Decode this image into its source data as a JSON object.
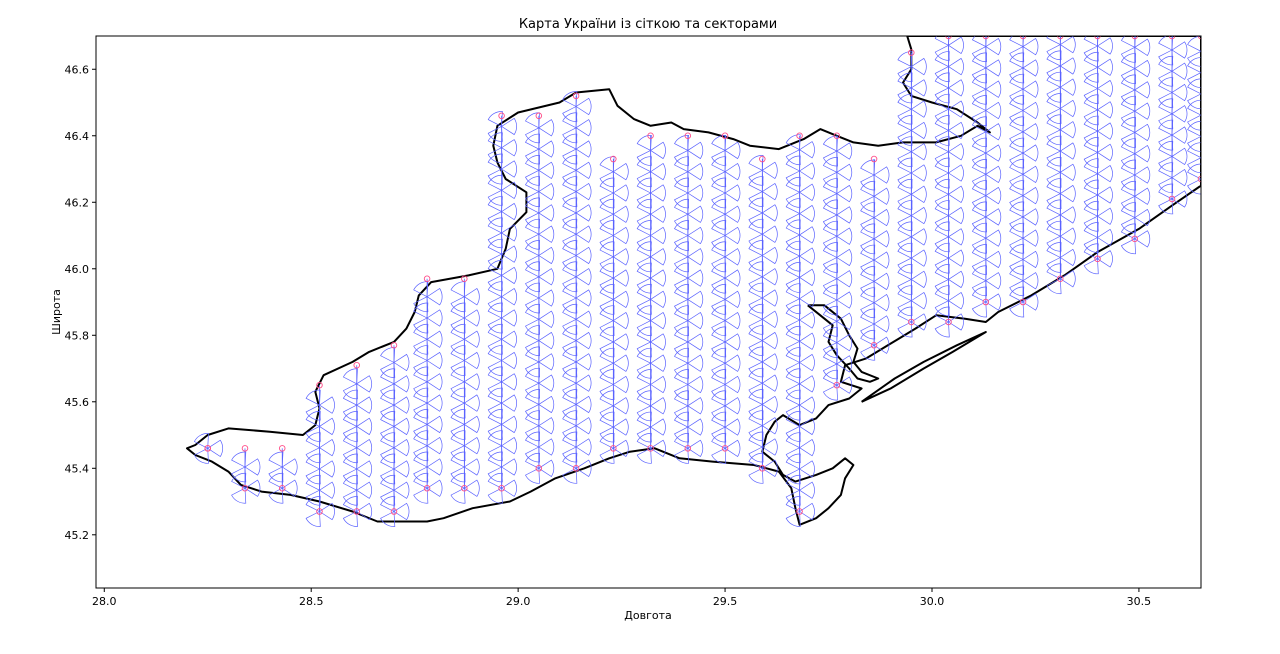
{
  "chart_data": {
    "type": "scatter",
    "title": "Карта України із сіткою та секторами",
    "xlabel": "Довгота",
    "ylabel": "Широта",
    "xlim": [
      27.98,
      30.65
    ],
    "ylim": [
      45.04,
      46.7
    ],
    "xticks": [
      28.0,
      28.5,
      29.0,
      29.5,
      30.0,
      30.5
    ],
    "xtick_labels": [
      "28.0",
      "28.5",
      "29.0",
      "29.5",
      "30.0",
      "30.5"
    ],
    "yticks": [
      45.2,
      45.4,
      45.6,
      45.8,
      46.0,
      46.2,
      46.4,
      46.6
    ],
    "ytick_labels": [
      "45.2",
      "45.4",
      "45.6",
      "45.8",
      "46.0",
      "46.2",
      "46.4",
      "46.6"
    ],
    "grid": false,
    "grid_spacing": {
      "dx": 0.09,
      "dy": 0.064
    },
    "grid_columns": [
      {
        "lon": 28.25,
        "lat_min": 45.46,
        "lat_max": 45.46
      },
      {
        "lon": 28.34,
        "lat_min": 45.34,
        "lat_max": 45.46
      },
      {
        "lon": 28.43,
        "lat_min": 45.34,
        "lat_max": 45.46
      },
      {
        "lon": 28.52,
        "lat_min": 45.27,
        "lat_max": 45.65
      },
      {
        "lon": 28.61,
        "lat_min": 45.27,
        "lat_max": 45.71
      },
      {
        "lon": 28.7,
        "lat_min": 45.27,
        "lat_max": 45.77
      },
      {
        "lon": 28.78,
        "lat_min": 45.34,
        "lat_max": 45.97
      },
      {
        "lon": 28.87,
        "lat_min": 45.34,
        "lat_max": 45.97
      },
      {
        "lon": 28.96,
        "lat_min": 45.34,
        "lat_max": 46.46
      },
      {
        "lon": 29.05,
        "lat_min": 45.4,
        "lat_max": 46.46
      },
      {
        "lon": 29.14,
        "lat_min": 45.4,
        "lat_max": 46.52
      },
      {
        "lon": 29.23,
        "lat_min": 45.46,
        "lat_max": 46.33
      },
      {
        "lon": 29.32,
        "lat_min": 45.46,
        "lat_max": 46.4
      },
      {
        "lon": 29.41,
        "lat_min": 45.46,
        "lat_max": 46.4
      },
      {
        "lon": 29.5,
        "lat_min": 45.46,
        "lat_max": 46.4
      },
      {
        "lon": 29.59,
        "lat_min": 45.4,
        "lat_max": 46.33
      },
      {
        "lon": 29.68,
        "lat_min": 45.27,
        "lat_max": 46.4
      },
      {
        "lon": 29.77,
        "lat_min": 45.65,
        "lat_max": 46.4
      },
      {
        "lon": 29.86,
        "lat_min": 45.77,
        "lat_max": 46.33
      },
      {
        "lon": 29.95,
        "lat_min": 45.84,
        "lat_max": 46.65
      },
      {
        "lon": 30.04,
        "lat_min": 45.84,
        "lat_max": 46.7
      },
      {
        "lon": 30.13,
        "lat_min": 45.9,
        "lat_max": 46.7
      },
      {
        "lon": 30.22,
        "lat_min": 45.9,
        "lat_max": 46.7
      },
      {
        "lon": 30.31,
        "lat_min": 45.97,
        "lat_max": 46.7
      },
      {
        "lon": 30.4,
        "lat_min": 46.03,
        "lat_max": 46.7
      },
      {
        "lon": 30.49,
        "lat_min": 46.09,
        "lat_max": 46.7
      },
      {
        "lon": 30.58,
        "lat_min": 46.21,
        "lat_max": 46.7
      },
      {
        "lon": 30.65,
        "lat_min": 46.27,
        "lat_max": 46.7
      }
    ],
    "boundary": [
      [
        28.22,
        45.47
      ],
      [
        28.25,
        45.5
      ],
      [
        28.3,
        45.52
      ],
      [
        28.4,
        45.51
      ],
      [
        28.48,
        45.5
      ],
      [
        28.51,
        45.53
      ],
      [
        28.52,
        45.58
      ],
      [
        28.51,
        45.63
      ],
      [
        28.53,
        45.68
      ],
      [
        28.6,
        45.72
      ],
      [
        28.64,
        45.75
      ],
      [
        28.7,
        45.78
      ],
      [
        28.73,
        45.82
      ],
      [
        28.75,
        45.87
      ],
      [
        28.76,
        45.92
      ],
      [
        28.79,
        45.96
      ],
      [
        28.88,
        45.98
      ],
      [
        28.95,
        46.0
      ],
      [
        28.97,
        46.06
      ],
      [
        28.98,
        46.12
      ],
      [
        29.02,
        46.17
      ],
      [
        29.02,
        46.23
      ],
      [
        28.97,
        46.27
      ],
      [
        28.95,
        46.32
      ],
      [
        28.94,
        46.37
      ],
      [
        28.95,
        46.43
      ],
      [
        29.0,
        46.47
      ],
      [
        29.1,
        46.5
      ],
      [
        29.14,
        46.53
      ],
      [
        29.22,
        46.54
      ],
      [
        29.24,
        46.49
      ],
      [
        29.28,
        46.45
      ],
      [
        29.32,
        46.43
      ],
      [
        29.37,
        46.44
      ],
      [
        29.4,
        46.42
      ],
      [
        29.46,
        46.41
      ],
      [
        29.52,
        46.39
      ],
      [
        29.56,
        46.37
      ],
      [
        29.63,
        46.36
      ],
      [
        29.69,
        46.39
      ],
      [
        29.73,
        46.42
      ],
      [
        29.77,
        46.4
      ],
      [
        29.81,
        46.38
      ],
      [
        29.87,
        46.37
      ],
      [
        29.93,
        46.38
      ],
      [
        30.01,
        46.38
      ],
      [
        30.07,
        46.4
      ],
      [
        30.11,
        46.43
      ],
      [
        30.14,
        46.41
      ],
      [
        30.11,
        46.44
      ],
      [
        30.06,
        46.48
      ],
      [
        30.0,
        46.5
      ],
      [
        29.95,
        46.52
      ],
      [
        29.93,
        46.56
      ],
      [
        29.95,
        46.6
      ],
      [
        29.95,
        46.66
      ],
      [
        29.94,
        46.7
      ],
      [
        30.65,
        46.7
      ],
      [
        30.65,
        46.25
      ],
      [
        30.58,
        46.19
      ],
      [
        30.5,
        46.12
      ],
      [
        30.4,
        46.05
      ],
      [
        30.32,
        45.98
      ],
      [
        30.24,
        45.92
      ],
      [
        30.16,
        45.87
      ],
      [
        30.13,
        45.84
      ],
      [
        30.08,
        45.85
      ],
      [
        30.01,
        45.86
      ],
      [
        29.96,
        45.82
      ],
      [
        29.92,
        45.79
      ],
      [
        29.88,
        45.76
      ],
      [
        29.84,
        45.73
      ],
      [
        29.79,
        45.71
      ],
      [
        29.78,
        45.66
      ],
      [
        29.83,
        45.64
      ],
      [
        29.8,
        45.61
      ],
      [
        29.75,
        45.59
      ],
      [
        29.72,
        45.55
      ],
      [
        29.68,
        45.53
      ],
      [
        29.64,
        45.56
      ],
      [
        29.62,
        45.54
      ],
      [
        29.6,
        45.5
      ],
      [
        29.59,
        45.45
      ],
      [
        29.62,
        45.42
      ],
      [
        29.64,
        45.38
      ],
      [
        29.67,
        45.36
      ],
      [
        29.72,
        45.38
      ],
      [
        29.76,
        45.4
      ],
      [
        29.79,
        45.43
      ],
      [
        29.81,
        45.41
      ],
      [
        29.79,
        45.37
      ],
      [
        29.78,
        45.32
      ],
      [
        29.75,
        45.28
      ],
      [
        29.72,
        45.25
      ],
      [
        29.68,
        45.23
      ],
      [
        29.67,
        45.28
      ],
      [
        29.66,
        45.34
      ],
      [
        29.63,
        45.39
      ],
      [
        29.57,
        45.41
      ],
      [
        29.47,
        45.42
      ],
      [
        29.39,
        45.43
      ],
      [
        29.33,
        45.46
      ],
      [
        29.27,
        45.45
      ],
      [
        29.22,
        45.43
      ],
      [
        29.16,
        45.4
      ],
      [
        29.09,
        45.37
      ],
      [
        29.03,
        45.33
      ],
      [
        28.98,
        45.3
      ],
      [
        28.89,
        45.28
      ],
      [
        28.82,
        45.25
      ],
      [
        28.78,
        45.24
      ],
      [
        28.66,
        45.24
      ],
      [
        28.6,
        45.27
      ],
      [
        28.52,
        45.3
      ],
      [
        28.45,
        45.32
      ],
      [
        28.38,
        45.33
      ],
      [
        28.33,
        45.35
      ],
      [
        28.3,
        45.39
      ],
      [
        28.26,
        45.42
      ],
      [
        28.22,
        45.44
      ],
      [
        28.2,
        45.46
      ],
      [
        28.22,
        45.47
      ]
    ],
    "islands": [
      [
        [
          29.7,
          45.89
        ],
        [
          29.73,
          45.86
        ],
        [
          29.76,
          45.83
        ],
        [
          29.75,
          45.78
        ],
        [
          29.77,
          45.74
        ],
        [
          29.8,
          45.7
        ],
        [
          29.82,
          45.67
        ],
        [
          29.85,
          45.66
        ],
        [
          29.87,
          45.67
        ],
        [
          29.83,
          45.69
        ],
        [
          29.81,
          45.72
        ],
        [
          29.82,
          45.76
        ],
        [
          29.8,
          45.8
        ],
        [
          29.78,
          45.85
        ],
        [
          29.74,
          45.89
        ],
        [
          29.7,
          45.89
        ]
      ],
      [
        [
          29.83,
          45.6
        ],
        [
          29.9,
          45.64
        ],
        [
          29.98,
          45.7
        ],
        [
          30.05,
          45.75
        ],
        [
          30.13,
          45.81
        ],
        [
          30.06,
          45.77
        ],
        [
          29.98,
          45.72
        ],
        [
          29.91,
          45.67
        ],
        [
          29.83,
          45.6
        ]
      ]
    ],
    "series": [
      {
        "marker": "circle",
        "color": "#ff4d88"
      },
      {
        "marker": "sector",
        "color": "#5a62ff"
      }
    ],
    "boundary_color": "#000000"
  }
}
